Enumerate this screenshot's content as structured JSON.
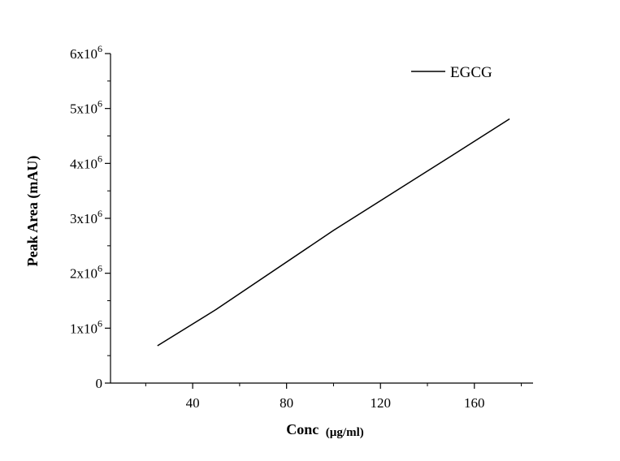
{
  "chart_data": {
    "type": "line",
    "x_label_main": "Conc",
    "x_label_unit": "(µg/ml)",
    "ylabel": "Peak Area (mAU)",
    "xlim": [
      5,
      185
    ],
    "ylim": [
      0,
      6000000
    ],
    "x_ticks": [
      40,
      80,
      120,
      160
    ],
    "x_tick_labels": [
      "40",
      "80",
      "120",
      "160"
    ],
    "x_minor_ticks": [
      20,
      60,
      100,
      140,
      180
    ],
    "y_ticks": [
      0,
      1000000,
      2000000,
      3000000,
      4000000,
      5000000,
      6000000
    ],
    "y_tick_labels": [
      {
        "base": "0",
        "exp": ""
      },
      {
        "base": "1x10",
        "exp": "6"
      },
      {
        "base": "2x10",
        "exp": "6"
      },
      {
        "base": "3x10",
        "exp": "6"
      },
      {
        "base": "4x10",
        "exp": "6"
      },
      {
        "base": "5x10",
        "exp": "6"
      },
      {
        "base": "6x10",
        "exp": "6"
      }
    ],
    "y_minor_ticks": [
      500000,
      1500000,
      2500000,
      3500000,
      4500000,
      5500000
    ],
    "grid": false,
    "legend_position": "top-right",
    "series": [
      {
        "name": "EGCG",
        "color": "#000000",
        "x": [
          25,
          50,
          100,
          150,
          175
        ],
        "y": [
          680000,
          1340000,
          2780000,
          4130000,
          4810000
        ]
      }
    ]
  }
}
